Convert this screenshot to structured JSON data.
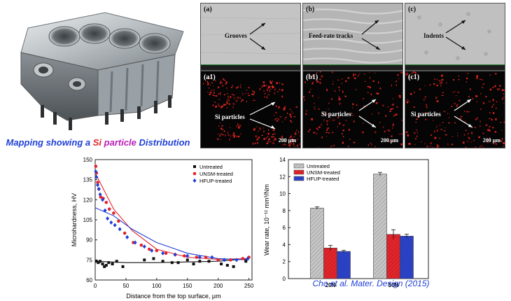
{
  "caption": {
    "w1": "Mapping showing a ",
    "w2": "Si",
    "w3": " particle",
    "w4": " Distribution"
  },
  "micrographs": [
    {
      "label": "(a)",
      "annotation": "Grooves"
    },
    {
      "label": "(b)",
      "annotation": "Feed-rate tracks"
    },
    {
      "label": "(c)",
      "annotation": "Indents"
    },
    {
      "label": "(a1)",
      "annotation": "Si particles",
      "scale": "200 μm"
    },
    {
      "label": "(b1)",
      "annotation": "Si particles",
      "scale": "200 μm"
    },
    {
      "label": "(c1)",
      "annotation": "Si particles",
      "scale": "200 μm"
    }
  ],
  "chart_data": [
    {
      "type": "scatter",
      "xlabel": "Distance from the top surface, μm",
      "ylabel": "Microhardness, HV",
      "xlim": [
        0,
        255
      ],
      "ylim": [
        60,
        150
      ],
      "xticks": [
        0,
        50,
        100,
        150,
        200,
        250
      ],
      "yticks": [
        60,
        75,
        90,
        105,
        120,
        135,
        150
      ],
      "legend_position": "top-right",
      "series": [
        {
          "name": "Untreated",
          "color": "#111111",
          "marker": "square",
          "x": [
            2,
            5,
            8,
            12,
            15,
            18,
            22,
            28,
            35,
            45,
            80,
            95,
            110,
            125,
            135,
            150,
            160,
            170,
            185,
            205,
            215,
            225,
            245
          ],
          "y": [
            74,
            73,
            74,
            72,
            70,
            71,
            73,
            72,
            74,
            70,
            75,
            76,
            74,
            73,
            73,
            75,
            72,
            74,
            74,
            72,
            71,
            70,
            74
          ],
          "trend": [
            [
              0,
              74
            ],
            [
              50,
              73
            ],
            [
              100,
              73
            ],
            [
              150,
              73.5
            ],
            [
              200,
              74
            ],
            [
              250,
              76
            ]
          ]
        },
        {
          "name": "UNSM-treated",
          "color": "#e0252b",
          "marker": "circle",
          "x": [
            1,
            2,
            4,
            6,
            9,
            13,
            18,
            23,
            30,
            38,
            48,
            62,
            75,
            88,
            100,
            115,
            130,
            145,
            165,
            180,
            200,
            220,
            240,
            250
          ],
          "y": [
            145,
            140,
            133,
            128,
            122,
            121,
            118,
            113,
            110,
            104,
            95,
            88,
            86,
            83,
            82,
            80,
            79,
            78,
            77,
            77,
            75,
            75,
            76,
            77
          ],
          "trend": [
            [
              0,
              140
            ],
            [
              30,
              113
            ],
            [
              60,
              97
            ],
            [
              100,
              83
            ],
            [
              150,
              77
            ],
            [
              200,
              75.5
            ],
            [
              250,
              76
            ]
          ]
        },
        {
          "name": "HFUP-treated",
          "color": "#1f3fd6",
          "marker": "diamond",
          "x": [
            1,
            2,
            4,
            6,
            8,
            12,
            16,
            20,
            26,
            32,
            40,
            52,
            65,
            80,
            92,
            110,
            130,
            150,
            170,
            190,
            210,
            230,
            248
          ],
          "y": [
            141,
            137,
            131,
            128,
            124,
            120,
            112,
            106,
            103,
            101,
            98,
            92,
            88,
            85,
            82,
            80,
            79,
            78,
            77,
            77,
            75,
            75,
            76
          ],
          "trend": [
            [
              0,
              114
            ],
            [
              30,
              108
            ],
            [
              60,
              98
            ],
            [
              100,
              88
            ],
            [
              150,
              80
            ],
            [
              200,
              76
            ],
            [
              250,
              75
            ]
          ]
        }
      ]
    },
    {
      "type": "bar",
      "ylabel": "Wear rate, 10⁻¹² mm³/Nm",
      "categories": [
        "20N",
        "50N"
      ],
      "ylim": [
        0,
        14
      ],
      "yticks": [
        0,
        2,
        4,
        6,
        8,
        10,
        12,
        14
      ],
      "legend_position": "top-left",
      "series": [
        {
          "name": "Untreated",
          "color": "#bcbcbc",
          "values": [
            8.3,
            12.3
          ],
          "errors": [
            0.15,
            0.2
          ]
        },
        {
          "name": "UNSM-treated",
          "color": "#e0252b",
          "values": [
            3.6,
            5.2
          ],
          "errors": [
            0.3,
            0.55
          ]
        },
        {
          "name": "HFUP-treated",
          "color": "#2340d8",
          "values": [
            3.2,
            5.0
          ],
          "errors": [
            0.12,
            0.22
          ]
        }
      ]
    }
  ],
  "credit": "Cho et al. Mater. Design (2015)"
}
